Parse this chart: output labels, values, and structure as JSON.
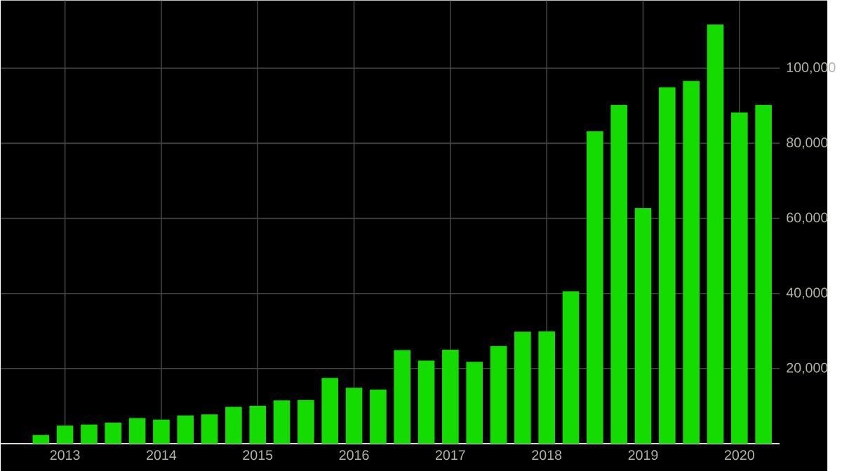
{
  "chart_data": {
    "type": "bar",
    "color": "#14dc00",
    "x": [
      "2012-10",
      "2013-01",
      "2013-04",
      "2013-07",
      "2013-10",
      "2014-01",
      "2014-04",
      "2014-07",
      "2014-10",
      "2015-01",
      "2015-04",
      "2015-07",
      "2015-10",
      "2016-01",
      "2016-04",
      "2016-07",
      "2016-10",
      "2017-01",
      "2017-04",
      "2017-07",
      "2017-10",
      "2018-01",
      "2018-04",
      "2018-07",
      "2018-10",
      "2019-01",
      "2019-04",
      "2019-07",
      "2019-10",
      "2020-01",
      "2020-04"
    ],
    "values": [
      2300,
      4800,
      5100,
      5600,
      6800,
      6400,
      7500,
      7800,
      9800,
      10100,
      11500,
      11600,
      17500,
      14900,
      14400,
      24900,
      22100,
      25000,
      21800,
      26000,
      29800,
      29900,
      40600,
      83200,
      90200,
      62700,
      94900,
      96600,
      111600,
      88200,
      90200
    ],
    "xlim": [
      "2012-05",
      "2020-06"
    ],
    "xticks": [
      "2013",
      "2014",
      "2015",
      "2016",
      "2017",
      "2018",
      "2019",
      "2020"
    ],
    "ylim": [
      0,
      118000
    ],
    "yticks": [
      {
        "value": 20000,
        "label": "20,000"
      },
      {
        "value": 40000,
        "label": "40,000"
      },
      {
        "value": 60000,
        "label": "60,000"
      },
      {
        "value": 80000,
        "label": "80,000"
      },
      {
        "value": 100000,
        "label": "100,000"
      }
    ],
    "grid": true
  }
}
